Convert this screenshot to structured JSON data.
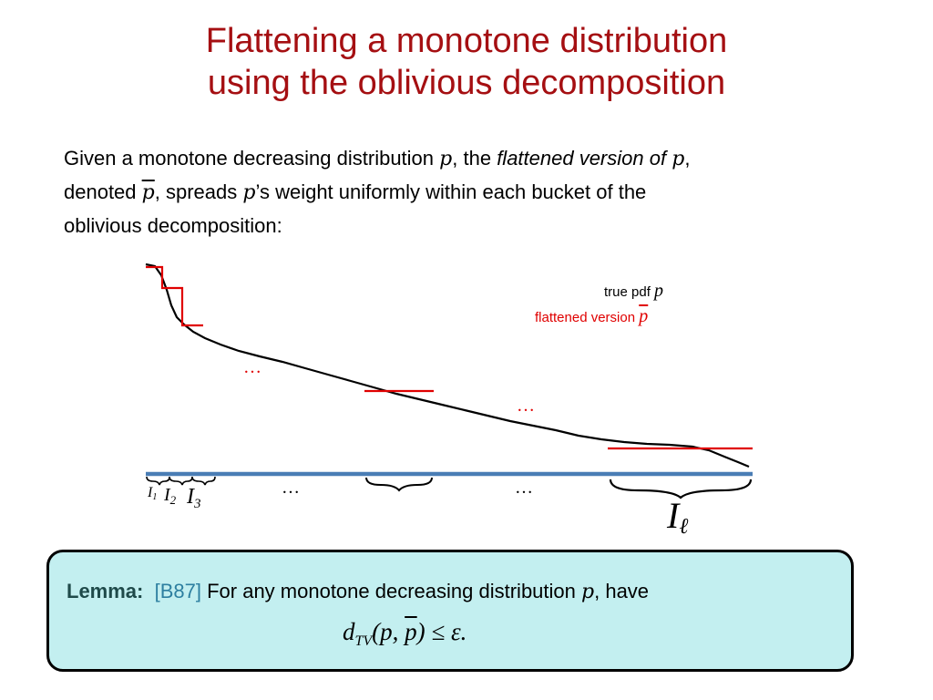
{
  "title": {
    "line1": "Flattening a monotone distribution",
    "line2": "using the oblivious decomposition"
  },
  "intro": {
    "t1": "Given a monotone decreasing distribution",
    "p": "p",
    "t2": ", the",
    "t3_italic": "flattened version of",
    "t4": ",",
    "t5": "denoted",
    "t6": ", spreads",
    "t7": "’s weight uniformly within each bucket of the",
    "t8": "oblivious decomposition:"
  },
  "figure": {
    "legend_true_text": "true pdf",
    "legend_true_symbol": "p",
    "legend_flat_text": "flattened version",
    "legend_flat_symbol": "p",
    "ellipsis": "…",
    "interval_labels": {
      "i1": "I",
      "i1_sub": "1",
      "i2": "I",
      "i2_sub": "2",
      "i3": "I",
      "i3_sub": "3",
      "il": "I",
      "il_sub": "ℓ"
    },
    "colors": {
      "true_pdf": "#000000",
      "flattened": "#e00000",
      "axis": "#4a7db5"
    }
  },
  "lemma": {
    "head": "Lemma:",
    "cite": "[B87]",
    "text1": "For any monotone decreasing distribution",
    "p": "p",
    "text2": ", have",
    "formula_d": "d",
    "formula_sub": "TV",
    "formula_open": "(p,",
    "formula_pbar": "p",
    "formula_close": ") ≤ ε."
  }
}
